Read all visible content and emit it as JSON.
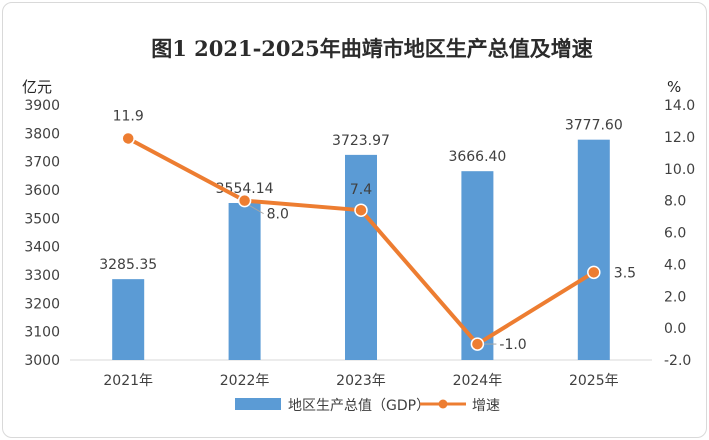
{
  "chart_data": {
    "type": "bar+line",
    "title": "图1  2021-2025年曲靖市地区生产总值及增速",
    "categories": [
      "2021年",
      "2022年",
      "2023年",
      "2024年",
      "2025年"
    ],
    "left_axis": {
      "unit": "亿元",
      "ylim": [
        3000,
        3900
      ],
      "ticks": [
        "3000",
        "3100",
        "3200",
        "3300",
        "3400",
        "3500",
        "3600",
        "3700",
        "3800",
        "3900"
      ]
    },
    "right_axis": {
      "unit": "%",
      "ylim": [
        -2.0,
        14.0
      ],
      "ticks": [
        "-2.0",
        "0.0",
        "2.0",
        "4.0",
        "6.0",
        "8.0",
        "10.0",
        "12.0",
        "14.0"
      ]
    },
    "series": [
      {
        "name": "地区生产总值（GDP）",
        "type": "bar",
        "axis": "left",
        "color": "#5b9bd5",
        "values": [
          3285.35,
          3554.14,
          3723.97,
          3666.4,
          3777.6
        ],
        "labels": [
          "3285.35",
          "3554.14",
          "3723.97",
          "3666.40",
          "3777.60"
        ]
      },
      {
        "name": "增速",
        "type": "line",
        "axis": "right",
        "color": "#ed7d31",
        "values": [
          11.9,
          8.0,
          7.4,
          -1.0,
          3.5
        ],
        "labels": [
          "11.9",
          "8.0",
          "7.4",
          "-1.0",
          "3.5"
        ]
      }
    ],
    "grid": false,
    "legend": "bottom"
  }
}
